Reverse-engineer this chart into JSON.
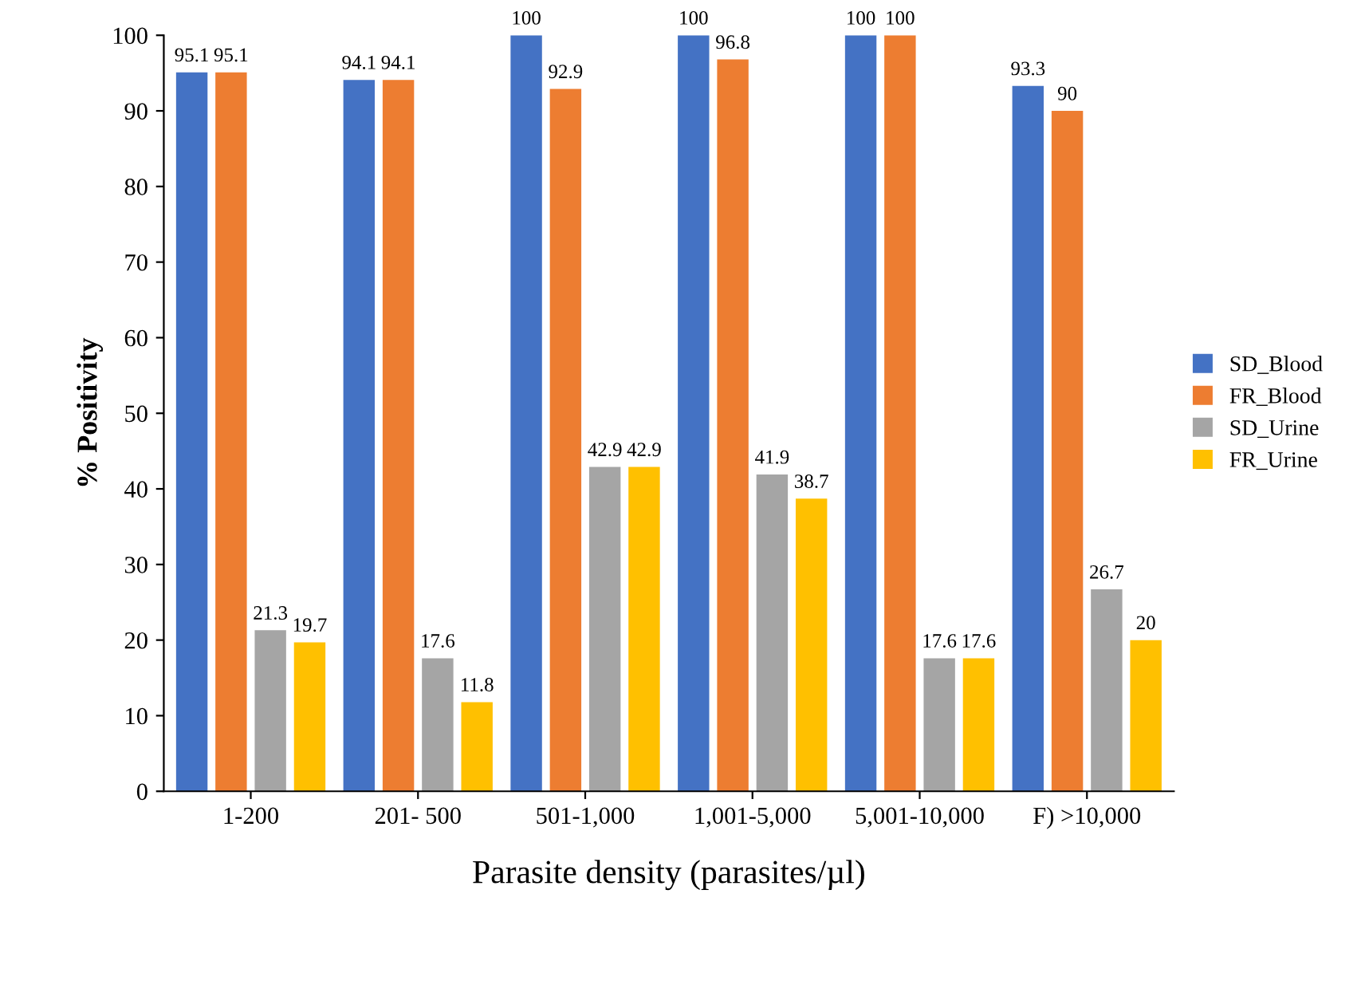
{
  "chart_data": {
    "type": "bar",
    "xlabel": "Parasite density (parasites/µl)",
    "ylabel": "% Positivity",
    "categories": [
      "1-200",
      "201- 500",
      "501-1,000",
      "1,001-5,000",
      "5,001-10,000",
      "F) >10,000"
    ],
    "series": [
      {
        "name": "SD_Blood",
        "color": "#4472c4",
        "values": [
          95.1,
          94.1,
          100,
          100,
          100,
          93.3
        ]
      },
      {
        "name": "FR_Blood",
        "color": "#ed7d31",
        "values": [
          95.1,
          94.1,
          92.9,
          96.8,
          100,
          90
        ]
      },
      {
        "name": "SD_Urine",
        "color": "#a5a5a5",
        "values": [
          21.3,
          17.6,
          42.9,
          41.9,
          17.6,
          26.7
        ]
      },
      {
        "name": "FR_Urine",
        "color": "#ffc000",
        "values": [
          19.7,
          11.8,
          42.9,
          38.7,
          17.6,
          20
        ]
      }
    ],
    "ylim": [
      0,
      100
    ],
    "yticks": [
      0,
      10,
      20,
      30,
      40,
      50,
      60,
      70,
      80,
      90,
      100
    ],
    "data_labels": true,
    "grid": false,
    "legend": "right"
  }
}
